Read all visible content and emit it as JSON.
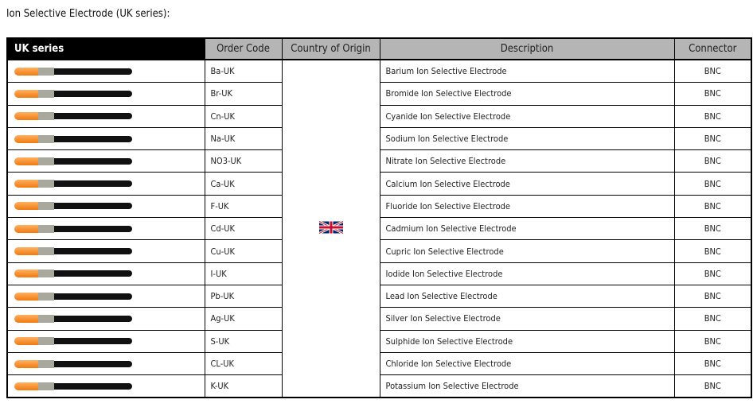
{
  "title": "Ion Selective Electrode (UK series):",
  "headers": [
    "UK series",
    "Order Code",
    "Country of Origin",
    "Description",
    "Connector"
  ],
  "origin_icon": "uk-flag-icon",
  "rows": [
    {
      "code": "Ba-UK",
      "desc": "Barium Ion Selective Electrode",
      "conn": "BNC"
    },
    {
      "code": "Br-UK",
      "desc": "Bromide Ion Selective Electrode",
      "conn": "BNC"
    },
    {
      "code": "Cn-UK",
      "desc": "Cyanide Ion Selective Electrode",
      "conn": "BNC"
    },
    {
      "code": "Na-UK",
      "desc": "Sodium Ion Selective Electrode",
      "conn": "BNC"
    },
    {
      "code": "NO3-UK",
      "desc": "Nitrate Ion Selective Electrode",
      "conn": "BNC"
    },
    {
      "code": "Ca-UK",
      "desc": "Calcium Ion Selective Electrode",
      "conn": "BNC"
    },
    {
      "code": "F-UK",
      "desc": "Fluoride Ion Selective Electrode",
      "conn": "BNC"
    },
    {
      "code": "Cd-UK",
      "desc": "Cadmium Ion Selective Electrode",
      "conn": "BNC"
    },
    {
      "code": "Cu-UK",
      "desc": "Cupric Ion Selective Electrode",
      "conn": "BNC"
    },
    {
      "code": "I-UK",
      "desc": "Iodide Ion Selective Electrode",
      "conn": "BNC"
    },
    {
      "code": "Pb-UK",
      "desc": "Lead Ion Selective Electrode",
      "conn": "BNC"
    },
    {
      "code": "Ag-UK",
      "desc": "Silver Ion Selective Electrode",
      "conn": "BNC"
    },
    {
      "code": "S-UK",
      "desc": "Sulphide Ion Selective Electrode",
      "conn": "BNC"
    },
    {
      "code": "CL-UK",
      "desc": "Chloride Ion Selective Electrode",
      "conn": "BNC"
    },
    {
      "code": "K-UK",
      "desc": "Potassium Ion Selective Electrode",
      "conn": "BNC"
    }
  ]
}
